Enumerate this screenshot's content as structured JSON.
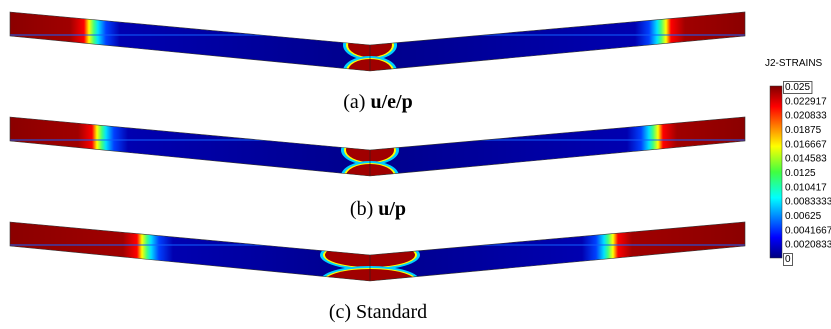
{
  "panels": [
    {
      "label": "(a)",
      "text": "u/e/p"
    },
    {
      "label": "(b)",
      "text": "u/p"
    },
    {
      "label": "(c)",
      "text": "Standard"
    }
  ],
  "colorbar": {
    "title": "J2-STRAINS",
    "ticks": [
      0.025,
      0.022917,
      0.020833,
      0.01875,
      0.016667,
      0.014583,
      0.0125,
      0.010417,
      0.0083333,
      0.00625,
      0.0041667,
      0.0020833,
      0
    ]
  }
}
